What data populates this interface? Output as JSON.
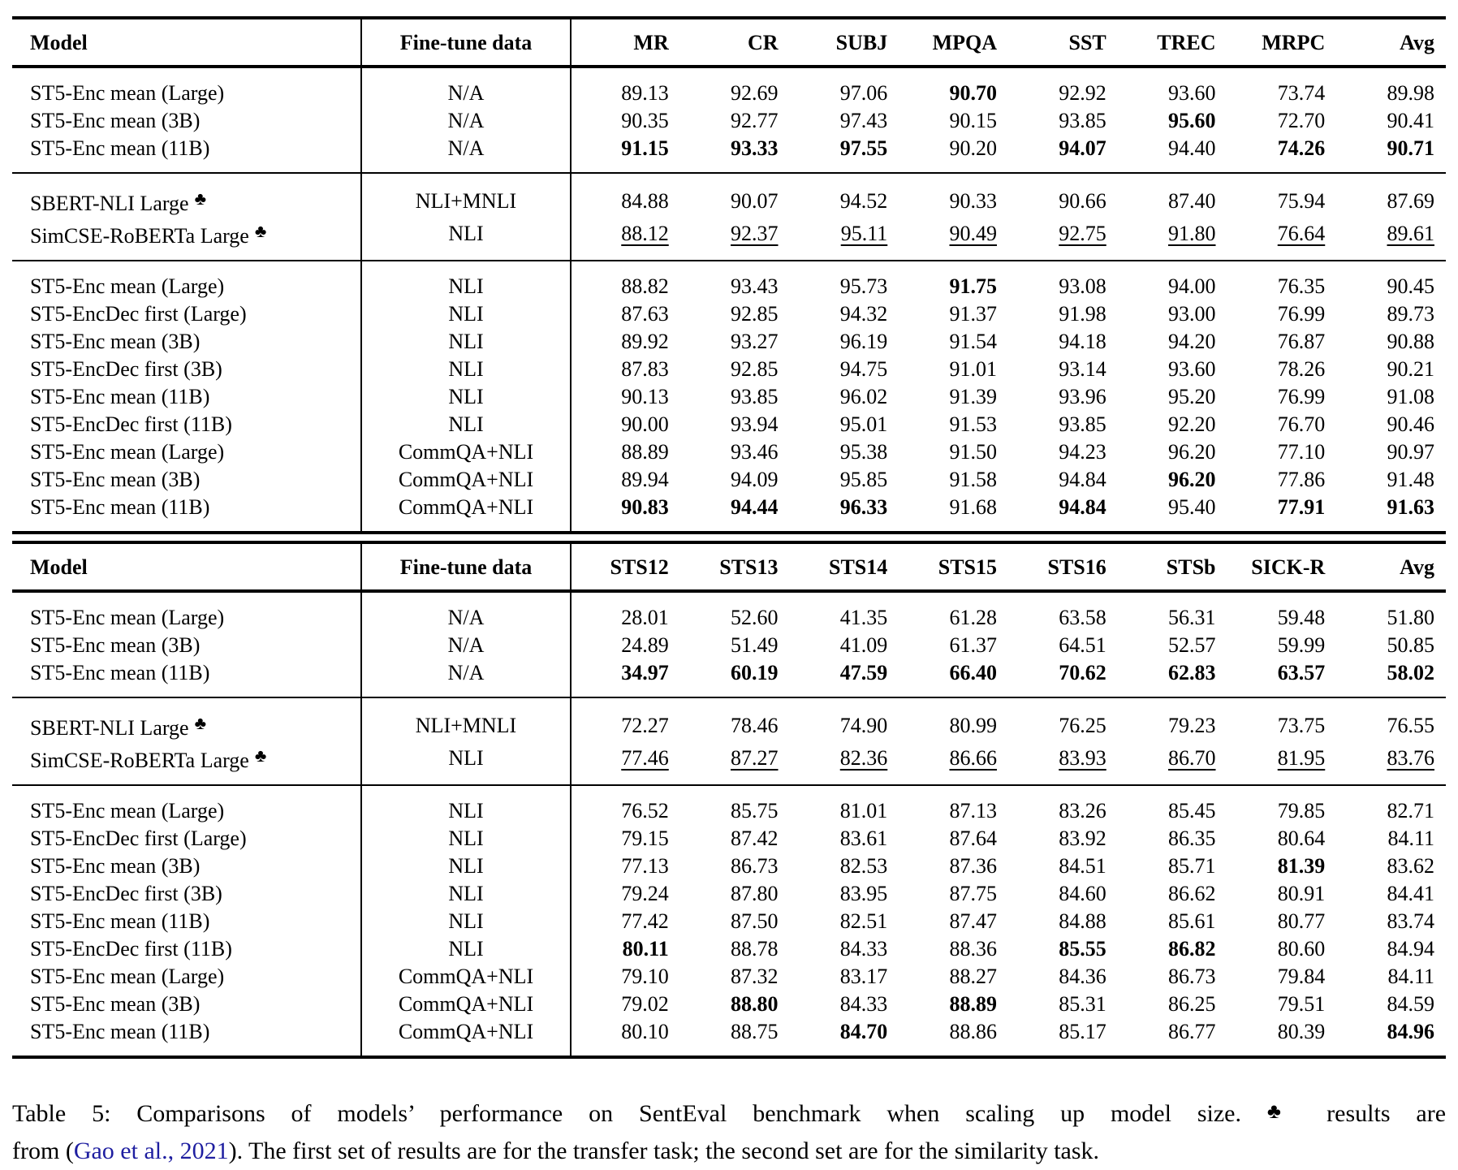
{
  "club_symbol": "♣",
  "colors": {
    "text": "#000000",
    "background": "#ffffff",
    "citation_link": "#1e1ea0"
  },
  "caption": {
    "line1_before_club": "Table 5: Comparisons of models’ performance on SentEval benchmark when scaling up model size. ",
    "club": "♣",
    "line1_after_club": " results are",
    "line2_before_link": "from (",
    "link": "Gao et al., 2021",
    "line2_after_link": "). The first set of results are for the transfer task; the second set are for the similarity task."
  },
  "tables": [
    {
      "task": "transfer",
      "headers": [
        "Model",
        "Fine-tune data",
        "MR",
        "CR",
        "SUBJ",
        "MPQA",
        "SST",
        "TREC",
        "MRPC",
        "Avg"
      ],
      "groups": [
        {
          "rows": [
            {
              "model": "ST5-Enc mean (Large)",
              "club": false,
              "ft": "N/A",
              "cells": [
                "89.13",
                "92.69",
                "97.06",
                "90.70",
                "92.92",
                "93.60",
                "73.74",
                "89.98"
              ],
              "bold": [
                3
              ],
              "underline": false
            },
            {
              "model": "ST5-Enc mean (3B)",
              "club": false,
              "ft": "N/A",
              "cells": [
                "90.35",
                "92.77",
                "97.43",
                "90.15",
                "93.85",
                "95.60",
                "72.70",
                "90.41"
              ],
              "bold": [
                5
              ],
              "underline": false
            },
            {
              "model": "ST5-Enc mean (11B)",
              "club": false,
              "ft": "N/A",
              "cells": [
                "91.15",
                "93.33",
                "97.55",
                "90.20",
                "94.07",
                "94.40",
                "74.26",
                "90.71"
              ],
              "bold": [
                0,
                1,
                2,
                4,
                6,
                7
              ],
              "underline": false
            }
          ]
        },
        {
          "rows": [
            {
              "model": "SBERT-NLI Large",
              "club": true,
              "ft": "NLI+MNLI",
              "cells": [
                "84.88",
                "90.07",
                "94.52",
                "90.33",
                "90.66",
                "87.40",
                "75.94",
                "87.69"
              ],
              "bold": [],
              "underline": false
            },
            {
              "model": "SimCSE-RoBERTa Large",
              "club": true,
              "ft": "NLI",
              "cells": [
                "88.12",
                "92.37",
                "95.11",
                "90.49",
                "92.75",
                "91.80",
                "76.64",
                "89.61"
              ],
              "bold": [],
              "underline": true
            }
          ]
        },
        {
          "rows": [
            {
              "model": "ST5-Enc mean (Large)",
              "club": false,
              "ft": "NLI",
              "cells": [
                "88.82",
                "93.43",
                "95.73",
                "91.75",
                "93.08",
                "94.00",
                "76.35",
                "90.45"
              ],
              "bold": [
                3
              ],
              "underline": false
            },
            {
              "model": "ST5-EncDec first (Large)",
              "club": false,
              "ft": "NLI",
              "cells": [
                "87.63",
                "92.85",
                "94.32",
                "91.37",
                "91.98",
                "93.00",
                "76.99",
                "89.73"
              ],
              "bold": [],
              "underline": false
            },
            {
              "model": "ST5-Enc mean (3B)",
              "club": false,
              "ft": "NLI",
              "cells": [
                "89.92",
                "93.27",
                "96.19",
                "91.54",
                "94.18",
                "94.20",
                "76.87",
                "90.88"
              ],
              "bold": [],
              "underline": false
            },
            {
              "model": "ST5-EncDec first (3B)",
              "club": false,
              "ft": "NLI",
              "cells": [
                "87.83",
                "92.85",
                "94.75",
                "91.01",
                "93.14",
                "93.60",
                "78.26",
                "90.21"
              ],
              "bold": [],
              "underline": false
            },
            {
              "model": "ST5-Enc mean (11B)",
              "club": false,
              "ft": "NLI",
              "cells": [
                "90.13",
                "93.85",
                "96.02",
                "91.39",
                "93.96",
                "95.20",
                "76.99",
                "91.08"
              ],
              "bold": [],
              "underline": false
            },
            {
              "model": "ST5-EncDec first (11B)",
              "club": false,
              "ft": "NLI",
              "cells": [
                "90.00",
                "93.94",
                "95.01",
                "91.53",
                "93.85",
                "92.20",
                "76.70",
                "90.46"
              ],
              "bold": [],
              "underline": false
            },
            {
              "model": "ST5-Enc mean (Large)",
              "club": false,
              "ft": "CommQA+NLI",
              "cells": [
                "88.89",
                "93.46",
                "95.38",
                "91.50",
                "94.23",
                "96.20",
                "77.10",
                "90.97"
              ],
              "bold": [],
              "underline": false
            },
            {
              "model": "ST5-Enc mean (3B)",
              "club": false,
              "ft": "CommQA+NLI",
              "cells": [
                "89.94",
                "94.09",
                "95.85",
                "91.58",
                "94.84",
                "96.20",
                "77.86",
                "91.48"
              ],
              "bold": [
                5
              ],
              "underline": false
            },
            {
              "model": "ST5-Enc mean (11B)",
              "club": false,
              "ft": "CommQA+NLI",
              "cells": [
                "90.83",
                "94.44",
                "96.33",
                "91.68",
                "94.84",
                "95.40",
                "77.91",
                "91.63"
              ],
              "bold": [
                0,
                1,
                2,
                4,
                6,
                7
              ],
              "underline": false
            }
          ]
        }
      ]
    },
    {
      "task": "similarity",
      "headers": [
        "Model",
        "Fine-tune data",
        "STS12",
        "STS13",
        "STS14",
        "STS15",
        "STS16",
        "STSb",
        "SICK-R",
        "Avg"
      ],
      "groups": [
        {
          "rows": [
            {
              "model": "ST5-Enc mean (Large)",
              "club": false,
              "ft": "N/A",
              "cells": [
                "28.01",
                "52.60",
                "41.35",
                "61.28",
                "63.58",
                "56.31",
                "59.48",
                "51.80"
              ],
              "bold": [],
              "underline": false
            },
            {
              "model": "ST5-Enc mean (3B)",
              "club": false,
              "ft": "N/A",
              "cells": [
                "24.89",
                "51.49",
                "41.09",
                "61.37",
                "64.51",
                "52.57",
                "59.99",
                "50.85"
              ],
              "bold": [],
              "underline": false
            },
            {
              "model": "ST5-Enc mean (11B)",
              "club": false,
              "ft": "N/A",
              "cells": [
                "34.97",
                "60.19",
                "47.59",
                "66.40",
                "70.62",
                "62.83",
                "63.57",
                "58.02"
              ],
              "bold": [
                0,
                1,
                2,
                3,
                4,
                5,
                6,
                7
              ],
              "underline": false
            }
          ]
        },
        {
          "rows": [
            {
              "model": "SBERT-NLI Large",
              "club": true,
              "ft": "NLI+MNLI",
              "cells": [
                "72.27",
                "78.46",
                "74.90",
                "80.99",
                "76.25",
                "79.23",
                "73.75",
                "76.55"
              ],
              "bold": [],
              "underline": false
            },
            {
              "model": "SimCSE-RoBERTa Large",
              "club": true,
              "ft": "NLI",
              "cells": [
                "77.46",
                "87.27",
                "82.36",
                "86.66",
                "83.93",
                "86.70",
                "81.95",
                "83.76"
              ],
              "bold": [],
              "underline": true
            }
          ]
        },
        {
          "rows": [
            {
              "model": "ST5-Enc mean (Large)",
              "club": false,
              "ft": "NLI",
              "cells": [
                "76.52",
                "85.75",
                "81.01",
                "87.13",
                "83.26",
                "85.45",
                "79.85",
                "82.71"
              ],
              "bold": [],
              "underline": false
            },
            {
              "model": "ST5-EncDec first (Large)",
              "club": false,
              "ft": "NLI",
              "cells": [
                "79.15",
                "87.42",
                "83.61",
                "87.64",
                "83.92",
                "86.35",
                "80.64",
                "84.11"
              ],
              "bold": [],
              "underline": false
            },
            {
              "model": "ST5-Enc mean (3B)",
              "club": false,
              "ft": "NLI",
              "cells": [
                "77.13",
                "86.73",
                "82.53",
                "87.36",
                "84.51",
                "85.71",
                "81.39",
                "83.62"
              ],
              "bold": [
                6
              ],
              "underline": false
            },
            {
              "model": "ST5-EncDec first (3B)",
              "club": false,
              "ft": "NLI",
              "cells": [
                "79.24",
                "87.80",
                "83.95",
                "87.75",
                "84.60",
                "86.62",
                "80.91",
                "84.41"
              ],
              "bold": [],
              "underline": false
            },
            {
              "model": "ST5-Enc mean (11B)",
              "club": false,
              "ft": "NLI",
              "cells": [
                "77.42",
                "87.50",
                "82.51",
                "87.47",
                "84.88",
                "85.61",
                "80.77",
                "83.74"
              ],
              "bold": [],
              "underline": false
            },
            {
              "model": "ST5-EncDec first (11B)",
              "club": false,
              "ft": "NLI",
              "cells": [
                "80.11",
                "88.78",
                "84.33",
                "88.36",
                "85.55",
                "86.82",
                "80.60",
                "84.94"
              ],
              "bold": [
                0,
                4,
                5
              ],
              "underline": false
            },
            {
              "model": "ST5-Enc mean (Large)",
              "club": false,
              "ft": "CommQA+NLI",
              "cells": [
                "79.10",
                "87.32",
                "83.17",
                "88.27",
                "84.36",
                "86.73",
                "79.84",
                "84.11"
              ],
              "bold": [],
              "underline": false
            },
            {
              "model": "ST5-Enc mean (3B)",
              "club": false,
              "ft": "CommQA+NLI",
              "cells": [
                "79.02",
                "88.80",
                "84.33",
                "88.89",
                "85.31",
                "86.25",
                "79.51",
                "84.59"
              ],
              "bold": [
                1,
                3
              ],
              "underline": false
            },
            {
              "model": "ST5-Enc mean (11B)",
              "club": false,
              "ft": "CommQA+NLI",
              "cells": [
                "80.10",
                "88.75",
                "84.70",
                "88.86",
                "85.17",
                "86.77",
                "80.39",
                "84.96"
              ],
              "bold": [
                2,
                7
              ],
              "underline": false
            }
          ]
        }
      ]
    }
  ]
}
